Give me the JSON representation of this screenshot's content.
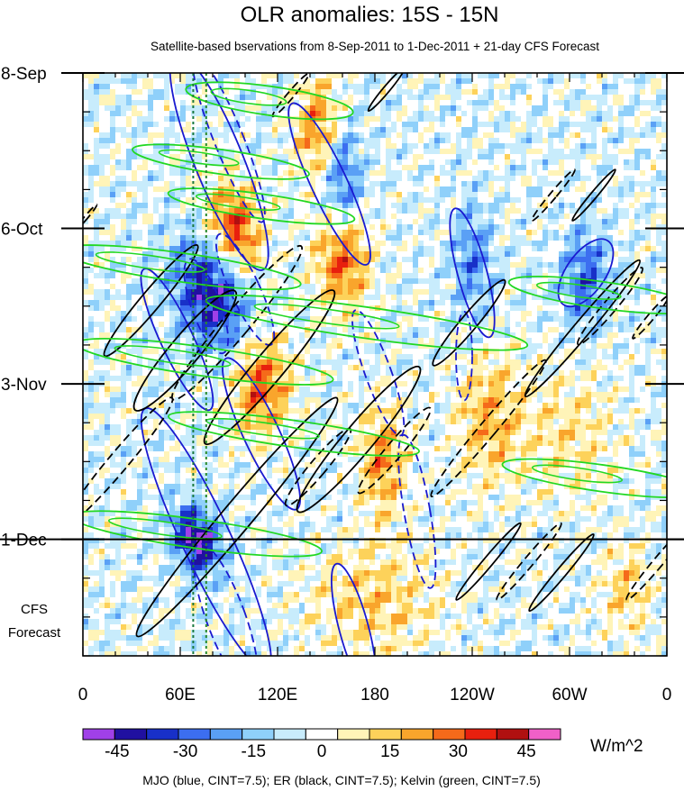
{
  "chart_data": {
    "type": "heatmap",
    "title": "OLR anomalies: 15S - 15N",
    "subtitle": "Satellite-based bservations from 8-Sep-2011 to 1-Dec-2011 + 21-day CFS Forecast",
    "x_tick_labels": [
      "0",
      "60E",
      "120E",
      "180",
      "120W",
      "60W",
      "0"
    ],
    "x_ticks_deg_east": [
      0,
      60,
      120,
      180,
      240,
      300,
      360
    ],
    "y_tick_labels": [
      "8-Sep",
      "6-Oct",
      "3-Nov",
      "1-Dec"
    ],
    "y_ticks_day": [
      0,
      28,
      56,
      84
    ],
    "time_range_days": [
      0,
      105
    ],
    "forecast_start_day": 84,
    "forecast_label": [
      "CFS",
      "Forecast"
    ],
    "colorbar": {
      "levels": [
        -52.5,
        -45,
        -37.5,
        -30,
        -22.5,
        -15,
        -7.5,
        0,
        7.5,
        15,
        22.5,
        30,
        37.5,
        45,
        52.5
      ],
      "tick_labels": [
        "-45",
        "-30",
        "-15",
        "0",
        "15",
        "30",
        "45"
      ],
      "tick_values": [
        -45,
        -30,
        -15,
        0,
        15,
        30,
        45
      ],
      "colors": [
        "#a040e8",
        "#2010a0",
        "#1830c8",
        "#3c6ef0",
        "#5aa0f5",
        "#8fd0fa",
        "#c8ecfc",
        "#ffffff",
        "#fff4b8",
        "#fdd25a",
        "#f9a52c",
        "#f56a1a",
        "#e8200e",
        "#b01010",
        "#f060c8"
      ],
      "units": "W/m^2"
    },
    "contour_legend": "MJO (blue, CINT=7.5); ER (black, CINT=7.5); Kelvin (green, CINT=7.5)",
    "contour_colors": {
      "mjo": "#1a1ad0",
      "er": "#000000",
      "kelvin": "#22d822"
    },
    "reference_lines_lon": [
      68,
      76
    ],
    "series": [
      {
        "name": "MJO",
        "ellipses": [
          {
            "lon": 58,
            "day": 48,
            "rlon": 10,
            "rday": 14,
            "angle": -25,
            "dashed": false
          },
          {
            "lon": 76,
            "day": 42,
            "rlon": 9,
            "rday": 9,
            "angle": -20,
            "dashed": true
          },
          {
            "lon": 84,
            "day": 16,
            "rlon": 15,
            "rday": 21,
            "angle": -22,
            "dashed": false
          },
          {
            "lon": 90,
            "day": 12,
            "rlon": 9,
            "rday": 16,
            "angle": -22,
            "dashed": true
          },
          {
            "lon": 110,
            "day": 65,
            "rlon": 11,
            "rday": 15,
            "angle": -25,
            "dashed": false
          },
          {
            "lon": 152,
            "day": 20,
            "rlon": 11,
            "rday": 16,
            "angle": -25,
            "dashed": false
          },
          {
            "lon": 100,
            "day": 39,
            "rlon": 9,
            "rday": 11,
            "angle": -25,
            "dashed": true
          },
          {
            "lon": 76,
            "day": 84,
            "rlon": 15,
            "rday": 26,
            "angle": -25,
            "dashed": false
          },
          {
            "lon": 88,
            "day": 98,
            "rlon": 12,
            "rday": 14,
            "angle": -20,
            "dashed": true
          },
          {
            "lon": 182,
            "day": 54,
            "rlon": 8,
            "rday": 12,
            "angle": -20,
            "dashed": true
          },
          {
            "lon": 206,
            "day": 79,
            "rlon": 8,
            "rday": 14,
            "angle": -10,
            "dashed": true
          },
          {
            "lon": 167,
            "day": 100,
            "rlon": 9,
            "rday": 12,
            "angle": -15,
            "dashed": false
          },
          {
            "lon": 240,
            "day": 36,
            "rlon": 9,
            "rday": 12,
            "angle": -15,
            "dashed": false
          },
          {
            "lon": 235,
            "day": 51,
            "rlon": 5,
            "rday": 8,
            "angle": 0,
            "dashed": true
          },
          {
            "lon": 310,
            "day": 36,
            "rlon": 12,
            "rday": 7,
            "angle": 35,
            "dashed": false
          }
        ]
      },
      {
        "name": "ER",
        "ellipses": [
          {
            "lon": 42,
            "day": 41,
            "rlon": 6,
            "rday": 13,
            "angle": 40,
            "dashed": false
          },
          {
            "lon": 63,
            "day": 50,
            "rlon": 9,
            "rday": 14,
            "angle": 40,
            "dashed": false
          },
          {
            "lon": 95,
            "day": 45,
            "rlon": 8,
            "rday": 18,
            "angle": 40,
            "dashed": true
          },
          {
            "lon": 115,
            "day": 53,
            "rlon": 9,
            "rday": 18,
            "angle": 40,
            "dashed": false
          },
          {
            "lon": 22,
            "day": 70,
            "rlon": 6,
            "rday": 15,
            "angle": 40,
            "dashed": true
          },
          {
            "lon": 95,
            "day": 80,
            "rlon": 9,
            "rday": 28,
            "angle": 40,
            "dashed": false
          },
          {
            "lon": 170,
            "day": 66,
            "rlon": 9,
            "rday": 17,
            "angle": 40,
            "dashed": false
          },
          {
            "lon": 192,
            "day": 68,
            "rlon": 5,
            "rday": 10,
            "angle": 40,
            "dashed": true
          },
          {
            "lon": 145,
            "day": 71,
            "rlon": 5,
            "rday": 9,
            "angle": 40,
            "dashed": true
          },
          {
            "lon": 250,
            "day": 64,
            "rlon": 5,
            "rday": 16,
            "angle": 40,
            "dashed": true
          },
          {
            "lon": 308,
            "day": 46,
            "rlon": 5,
            "rday": 16,
            "angle": 40,
            "dashed": false
          },
          {
            "lon": 238,
            "day": 45,
            "rlon": 5,
            "rday": 10,
            "angle": 40,
            "dashed": false
          },
          {
            "lon": 325,
            "day": 42,
            "rlon": 4,
            "rday": 9,
            "angle": 40,
            "dashed": true
          },
          {
            "lon": 250,
            "day": 88,
            "rlon": 3,
            "rday": 9,
            "angle": 40,
            "dashed": false
          },
          {
            "lon": 275,
            "day": 88,
            "rlon": 3,
            "rday": 9,
            "angle": 40,
            "dashed": true
          },
          {
            "lon": 295,
            "day": 90,
            "rlon": 3,
            "rday": 9,
            "angle": 40,
            "dashed": false
          },
          {
            "lon": 355,
            "day": 88,
            "rlon": 3,
            "rday": 9,
            "angle": 40,
            "dashed": true
          },
          {
            "lon": 290,
            "day": 22,
            "rlon": 2,
            "rday": 6,
            "angle": 40,
            "dashed": true
          },
          {
            "lon": 315,
            "day": 22,
            "rlon": 2,
            "rday": 6,
            "angle": 40,
            "dashed": false
          },
          {
            "lon": 187,
            "day": 3,
            "rlon": 2,
            "rday": 5,
            "angle": 40,
            "dashed": false
          },
          {
            "lon": 128,
            "day": 4,
            "rlon": 2,
            "rday": 5,
            "angle": 40,
            "dashed": true
          },
          {
            "lon": 350,
            "day": 44,
            "rlon": 2,
            "rday": 5,
            "angle": 40,
            "dashed": true
          },
          {
            "lon": 2,
            "day": 26,
            "rlon": 1,
            "rday": 3,
            "angle": 40,
            "dashed": true
          }
        ]
      },
      {
        "name": "Kelvin",
        "bands": [
          {
            "lon": 115,
            "day": 5,
            "len": 52,
            "width": 2.6
          },
          {
            "lon": 85,
            "day": 16,
            "len": 55,
            "width": 2.2
          },
          {
            "lon": 110,
            "day": 24,
            "len": 58,
            "width": 2.2
          },
          {
            "lon": 60,
            "day": 35,
            "len": 75,
            "width": 2.6
          },
          {
            "lon": 175,
            "day": 45,
            "len": 100,
            "width": 2.8
          },
          {
            "lon": 75,
            "day": 52,
            "len": 80,
            "width": 2.6
          },
          {
            "lon": 130,
            "day": 65,
            "len": 78,
            "width": 2.4
          },
          {
            "lon": 70,
            "day": 83,
            "len": 78,
            "width": 2.6
          },
          {
            "lon": 320,
            "day": 40,
            "len": 58,
            "width": 2.4
          },
          {
            "lon": 320,
            "day": 73,
            "len": 62,
            "width": 2.4
          }
        ]
      }
    ]
  },
  "footer": {
    "units_label": "W/m^2",
    "contour_legend_text": "MJO (blue, CINT=7.5); ER (black, CINT=7.5); Kelvin (green, CINT=7.5)"
  }
}
